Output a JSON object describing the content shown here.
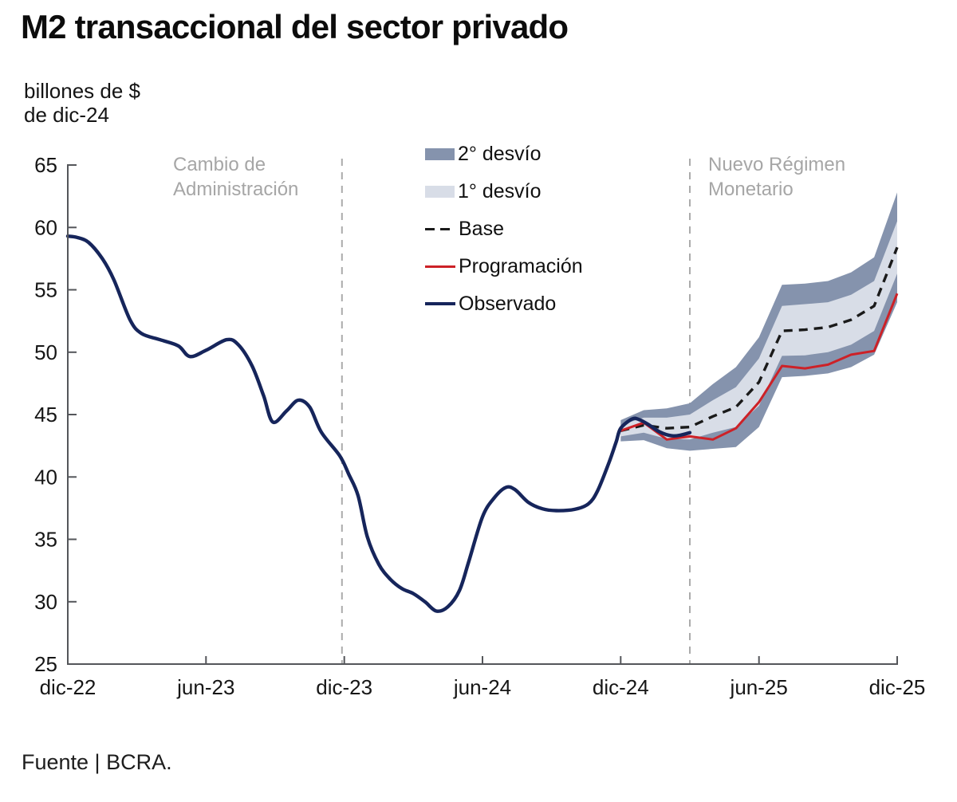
{
  "page": {
    "title": "M2 transaccional del sector privado",
    "unit_label": "billones de $\nde dic-24",
    "source": "Fuente | BCRA."
  },
  "colors": {
    "observed": "#16255b",
    "programacion": "#cd2127",
    "base": "#1a1a1a",
    "band_1_desvio": "#d8dde7",
    "band_2_desvio": "#8593ad",
    "axis": "#54565a",
    "tick_label": "#161616",
    "annotation": "#a6a6a6",
    "annotation_line": "#ababab"
  },
  "chart_data": {
    "type": "line",
    "title": "M2 transaccional del sector privado",
    "ylabel": "billones de $ de dic-24",
    "source": "Fuente | BCRA.",
    "ylim": [
      25,
      65
    ],
    "y_ticks": [
      25,
      30,
      35,
      40,
      45,
      50,
      55,
      60,
      65
    ],
    "x_ticks": [
      "dic-22",
      "jun-23",
      "dic-23",
      "jun-24",
      "dic-24",
      "jun-25",
      "dic-25"
    ],
    "x_tick_months": [
      0,
      6,
      12,
      18,
      24,
      30,
      36
    ],
    "x_unit": "months since dic-22",
    "grid": false,
    "legend_position": "upper-center-overlay",
    "legend": [
      {
        "label": "2° desvío",
        "type": "band",
        "color_key": "band_2_desvio"
      },
      {
        "label": "1° desvío",
        "type": "band",
        "color_key": "band_1_desvio"
      },
      {
        "label": "Base",
        "type": "dashed-line",
        "color_key": "base"
      },
      {
        "label": "Programación",
        "type": "line",
        "color_key": "programacion"
      },
      {
        "label": "Observado",
        "type": "line",
        "color_key": "observed"
      }
    ],
    "annotations": [
      {
        "label": "Cambio de\nAdministración",
        "month": 11.9,
        "date": "dic-23"
      },
      {
        "label": "Nuevo Régimen\nMonetario",
        "month": 27.0,
        "date": "mar-25"
      }
    ],
    "observed": {
      "name": "Observado",
      "points": [
        [
          0,
          59.3
        ],
        [
          0.4,
          59.2
        ],
        [
          0.9,
          58.8
        ],
        [
          1.5,
          57.5
        ],
        [
          2,
          55.8
        ],
        [
          2.7,
          52.6
        ],
        [
          3.2,
          51.5
        ],
        [
          4,
          51.0
        ],
        [
          4.8,
          50.5
        ],
        [
          5.3,
          49.65
        ],
        [
          6,
          50.15
        ],
        [
          6.9,
          51.0
        ],
        [
          7.4,
          50.6
        ],
        [
          8,
          48.9
        ],
        [
          8.5,
          46.5
        ],
        [
          8.9,
          44.4
        ],
        [
          9.5,
          45.3
        ],
        [
          10,
          46.15
        ],
        [
          10.5,
          45.6
        ],
        [
          11,
          43.6
        ],
        [
          11.8,
          41.7
        ],
        [
          12.2,
          40.2
        ],
        [
          12.6,
          38.5
        ],
        [
          13,
          35.2
        ],
        [
          13.5,
          33.0
        ],
        [
          14,
          31.8
        ],
        [
          14.5,
          31.05
        ],
        [
          15,
          30.65
        ],
        [
          15.5,
          30.0
        ],
        [
          16,
          29.25
        ],
        [
          16.5,
          29.6
        ],
        [
          17,
          30.9
        ],
        [
          17.4,
          33.2
        ],
        [
          18,
          36.8
        ],
        [
          18.5,
          38.3
        ],
        [
          19,
          39.15
        ],
        [
          19.4,
          39.0
        ],
        [
          20,
          37.95
        ],
        [
          20.6,
          37.45
        ],
        [
          21.2,
          37.3
        ],
        [
          22,
          37.4
        ],
        [
          22.6,
          37.85
        ],
        [
          23,
          38.9
        ],
        [
          23.5,
          41.2
        ],
        [
          23.8,
          42.8
        ],
        [
          24,
          43.9
        ],
        [
          24.5,
          44.65
        ],
        [
          24.8,
          44.6
        ],
        [
          25.2,
          44.2
        ],
        [
          25.7,
          43.6
        ],
        [
          26.2,
          43.3
        ],
        [
          26.6,
          43.35
        ],
        [
          27,
          43.55
        ]
      ]
    },
    "projection": {
      "months": [
        24,
        25,
        26,
        27,
        28,
        29,
        30,
        31,
        32,
        33,
        34,
        35,
        36
      ],
      "month_labels": [
        "dic-24",
        "ene-25",
        "feb-25",
        "mar-25",
        "abr-25",
        "may-25",
        "jun-25",
        "jul-25",
        "ago-25",
        "sep-25",
        "oct-25",
        "nov-25",
        "dic-25"
      ],
      "base": [
        43.7,
        44.15,
        43.9,
        44.0,
        44.85,
        45.6,
        47.6,
        51.7,
        51.8,
        52.0,
        52.6,
        53.7,
        58.4
      ],
      "programacion": [
        43.7,
        44.35,
        43.0,
        43.25,
        43.0,
        43.9,
        46.0,
        48.9,
        48.7,
        49.0,
        49.8,
        50.1,
        54.7
      ],
      "desvio1": [
        0.45,
        0.6,
        0.85,
        1.0,
        1.3,
        1.6,
        1.9,
        2.0,
        2.05,
        2.0,
        2.0,
        2.0,
        2.1
      ],
      "desvio2": [
        0.85,
        1.2,
        1.6,
        1.9,
        2.6,
        3.2,
        3.6,
        3.7,
        3.7,
        3.7,
        3.8,
        3.9,
        4.4
      ]
    }
  }
}
